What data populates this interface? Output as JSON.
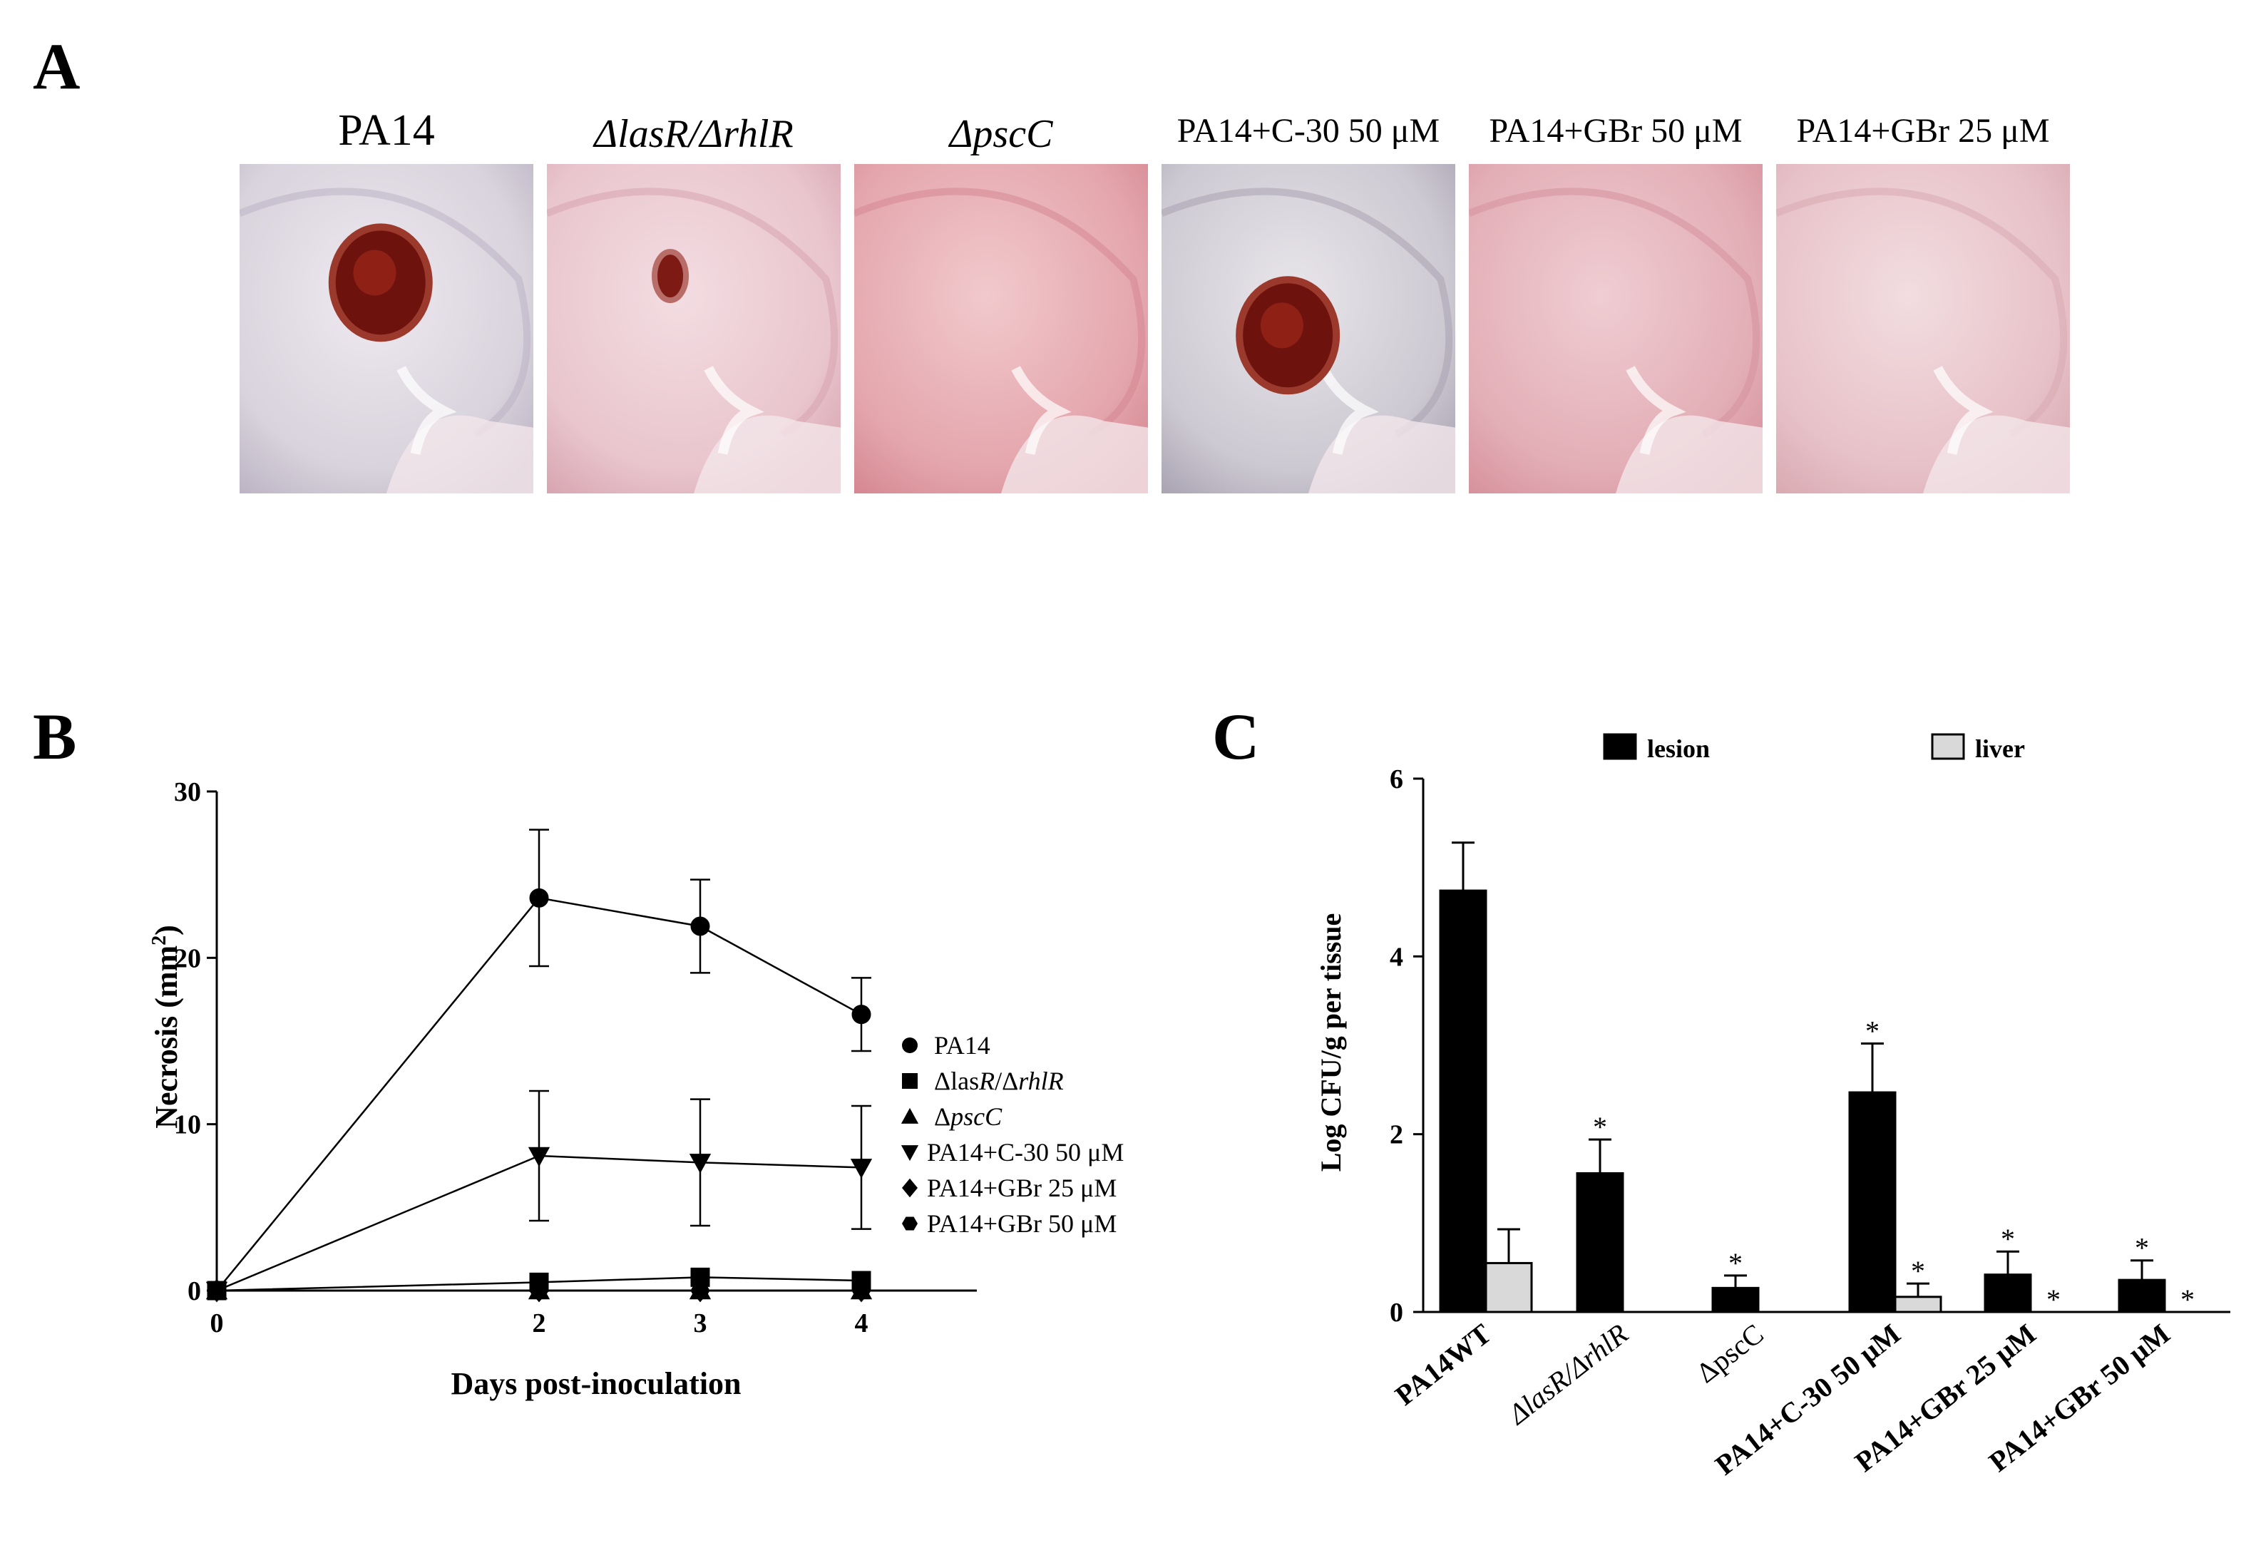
{
  "figure": {
    "panel_a": {
      "letter": "A",
      "photos": [
        {
          "label": "PA14",
          "italic": false,
          "lesion": "large"
        },
        {
          "label": "ΔlasR/ΔrhlR",
          "italic": true,
          "lesion": "small"
        },
        {
          "label": "ΔpscC",
          "italic": true,
          "lesion": "none"
        },
        {
          "label": "PA14+C-30 50 μM",
          "italic": false,
          "lesion": "large"
        },
        {
          "label": "PA14+GBr 50 μM",
          "italic": false,
          "lesion": "none"
        },
        {
          "label": "PA14+GBr 25 μM",
          "italic": false,
          "lesion": "none"
        }
      ]
    },
    "panel_b": {
      "letter": "B"
    },
    "panel_c": {
      "letter": "C"
    }
  },
  "chart_data": [
    {
      "type": "line",
      "xlabel": "Days post-inoculation",
      "ylabel": "Necrosis (mm²)",
      "ylabel_main": "Necrosis (mm",
      "ylabel_sup": "2",
      "ylabel_end": ")",
      "x": [
        0,
        2,
        3,
        4
      ],
      "x_tick_labels": [
        "0",
        "2",
        "3",
        "4"
      ],
      "y_ticks": [
        0,
        10,
        20,
        30
      ],
      "y_tick_labels": [
        "0",
        "10",
        "20",
        "30"
      ],
      "ylim": [
        0,
        30
      ],
      "legend_position": "right",
      "series": [
        {
          "name": "PA14",
          "marker": "circle",
          "values": [
            0,
            23.6,
            21.9,
            16.6
          ],
          "errors": [
            0,
            4.1,
            2.8,
            2.2
          ]
        },
        {
          "name": "ΔlasR/ΔrhlR",
          "name_parts": [
            "Δlas",
            "R",
            "/Δ",
            "rhlR"
          ],
          "marker": "square",
          "values": [
            0,
            0.5,
            0.8,
            0.6
          ],
          "errors": [
            0,
            0,
            0,
            0
          ]
        },
        {
          "name": "ΔpscC",
          "name_parts": [
            "Δ",
            "pscC"
          ],
          "marker": "triangle",
          "values": [
            0,
            0,
            0,
            0
          ],
          "errors": [
            0,
            0,
            0,
            0
          ]
        },
        {
          "name": "PA14+C-30 50 μM",
          "marker": "triangle-down",
          "values": [
            0,
            8.1,
            7.7,
            7.4
          ],
          "errors": [
            0,
            3.9,
            3.8,
            3.7
          ]
        },
        {
          "name": "PA14+GBr 25 μM",
          "marker": "diamond",
          "values": [
            0,
            0,
            0,
            0
          ],
          "errors": [
            0,
            0,
            0,
            0
          ]
        },
        {
          "name": "PA14+GBr 50 μM",
          "marker": "hexagon",
          "values": [
            0,
            0,
            0,
            0
          ],
          "errors": [
            0,
            0,
            0,
            0
          ]
        }
      ]
    },
    {
      "type": "bar",
      "ylabel": "Log CFU/g per tissue",
      "categories": [
        "PA14WT",
        "ΔlasR/ΔrhlR",
        "ΔpscC",
        "PA14+C-30 50 μM",
        "PA14+GBr 25 μM",
        "PA14+GBr 50 μM"
      ],
      "y_ticks": [
        0,
        2,
        4,
        6
      ],
      "y_tick_labels": [
        "0",
        "2",
        "4",
        "6"
      ],
      "ylim": [
        0,
        6
      ],
      "legend_position": "top",
      "significance_mark": "*",
      "series": [
        {
          "name": "lesion",
          "color": "#000000",
          "values": [
            4.74,
            1.56,
            0.27,
            2.47,
            0.42,
            0.36
          ],
          "errors": [
            0.54,
            0.38,
            0.14,
            0.55,
            0.26,
            0.22
          ],
          "significant": [
            false,
            true,
            true,
            true,
            true,
            true
          ]
        },
        {
          "name": "liver",
          "color": "#d9d9d9",
          "values": [
            0.55,
            0,
            0,
            0.17,
            0,
            0
          ],
          "errors": [
            0.38,
            0,
            0,
            0.15,
            0,
            0
          ],
          "significant": [
            false,
            false,
            false,
            true,
            true,
            true
          ]
        }
      ]
    }
  ]
}
